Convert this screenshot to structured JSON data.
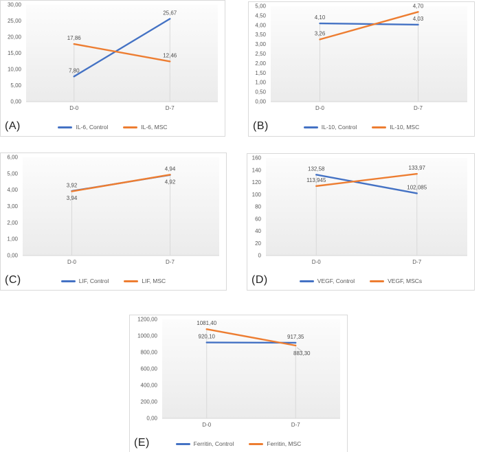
{
  "colors": {
    "control_line": "#4472C4",
    "msc_line": "#ED7D31",
    "tick_label": "#595959",
    "data_label": "#4d4d4d",
    "panel_border": "#d9d9d9",
    "drop_line": "#d9d9d9",
    "axis_line": "#d6d6d6",
    "plot_fill_top": "#fcfcfc",
    "plot_fill_bottom": "#ebebeb"
  },
  "chart_data": [
    {
      "panel_label": "(A)",
      "type": "line",
      "categories": [
        "D-0",
        "D-7"
      ],
      "grid": false,
      "legend_position": "bottom",
      "y_axis": {
        "min": 0,
        "max": 30,
        "tick_labels": [
          "30,00",
          "25,00",
          "20,00",
          "15,00",
          "10,00",
          "5,00",
          "0,00"
        ]
      },
      "series": [
        {
          "name": "IL-6, Control",
          "color": "#4472C4",
          "values": [
            7.8,
            25.67
          ],
          "labels": [
            "7,80",
            "25,67"
          ],
          "label_pos": [
            "above",
            "above"
          ]
        },
        {
          "name": "IL-6, MSC",
          "color": "#ED7D31",
          "values": [
            17.86,
            12.46
          ],
          "labels": [
            "17,86",
            "12,46"
          ],
          "label_pos": [
            "above",
            "above"
          ]
        }
      ]
    },
    {
      "panel_label": "(B)",
      "type": "line",
      "categories": [
        "D-0",
        "D-7"
      ],
      "grid": false,
      "legend_position": "bottom",
      "y_axis": {
        "min": 0,
        "max": 5,
        "tick_labels": [
          "5,00",
          "4,50",
          "4,00",
          "3,50",
          "3,00",
          "2,50",
          "2,00",
          "1,50",
          "1,00",
          "0,50",
          "0,00"
        ]
      },
      "series": [
        {
          "name": "IL-10, Control",
          "color": "#4472C4",
          "values": [
            4.1,
            4.03
          ],
          "labels": [
            "4,10",
            "4,03"
          ],
          "label_pos": [
            "above",
            "above"
          ]
        },
        {
          "name": "IL-10, MSC",
          "color": "#ED7D31",
          "values": [
            3.26,
            4.7
          ],
          "labels": [
            "3,26",
            "4,70"
          ],
          "label_pos": [
            "above",
            "above"
          ]
        }
      ]
    },
    {
      "panel_label": "(C)",
      "type": "line",
      "categories": [
        "D-0",
        "D-7"
      ],
      "grid": false,
      "legend_position": "bottom",
      "y_axis": {
        "min": 0,
        "max": 6,
        "tick_labels": [
          "6,00",
          "5,00",
          "4,00",
          "3,00",
          "2,00",
          "1,00",
          "0,00"
        ]
      },
      "series": [
        {
          "name": "LIF, Control",
          "color": "#4472C4",
          "values": [
            3.94,
            4.92
          ],
          "labels": [
            "3,94",
            "4,92"
          ],
          "label_pos": [
            "below",
            "below"
          ]
        },
        {
          "name": "LIF, MSC",
          "color": "#ED7D31",
          "values": [
            3.92,
            4.94
          ],
          "labels": [
            "3,92",
            "4,94"
          ],
          "label_pos": [
            "above",
            "above"
          ]
        }
      ]
    },
    {
      "panel_label": "(D)",
      "type": "line",
      "categories": [
        "D-0",
        "D-7"
      ],
      "grid": false,
      "legend_position": "bottom",
      "y_axis": {
        "min": 0,
        "max": 160,
        "tick_labels": [
          "160",
          "140",
          "120",
          "100",
          "80",
          "60",
          "40",
          "20",
          "0"
        ]
      },
      "series": [
        {
          "name": "VEGF, Control",
          "color": "#4472C4",
          "values": [
            132.58,
            102.085
          ],
          "labels": [
            "132,58",
            "102,085"
          ],
          "label_pos": [
            "above",
            "above"
          ]
        },
        {
          "name": "VEGF, MSCs",
          "color": "#ED7D31",
          "values": [
            113.945,
            133.97
          ],
          "labels": [
            "113,945",
            "133,97"
          ],
          "label_pos": [
            "above",
            "above"
          ]
        }
      ]
    },
    {
      "panel_label": "(E)",
      "type": "line",
      "categories": [
        "D-0",
        "D-7"
      ],
      "grid": false,
      "legend_position": "bottom",
      "y_axis": {
        "min": 0,
        "max": 1200,
        "tick_labels": [
          "1200,00",
          "1000,00",
          "800,00",
          "600,00",
          "400,00",
          "200,00",
          "0,00"
        ]
      },
      "series": [
        {
          "name": "Ferritin, Control",
          "color": "#4472C4",
          "values": [
            920.1,
            917.35
          ],
          "labels": [
            "920,10",
            "917,35"
          ],
          "label_pos": [
            "above",
            "above"
          ]
        },
        {
          "name": "Ferritin, MSC",
          "color": "#ED7D31",
          "values": [
            1081.4,
            883.3
          ],
          "labels": [
            "1081,40",
            "883,30"
          ],
          "label_pos": [
            "above",
            "below-leader"
          ]
        }
      ]
    }
  ]
}
